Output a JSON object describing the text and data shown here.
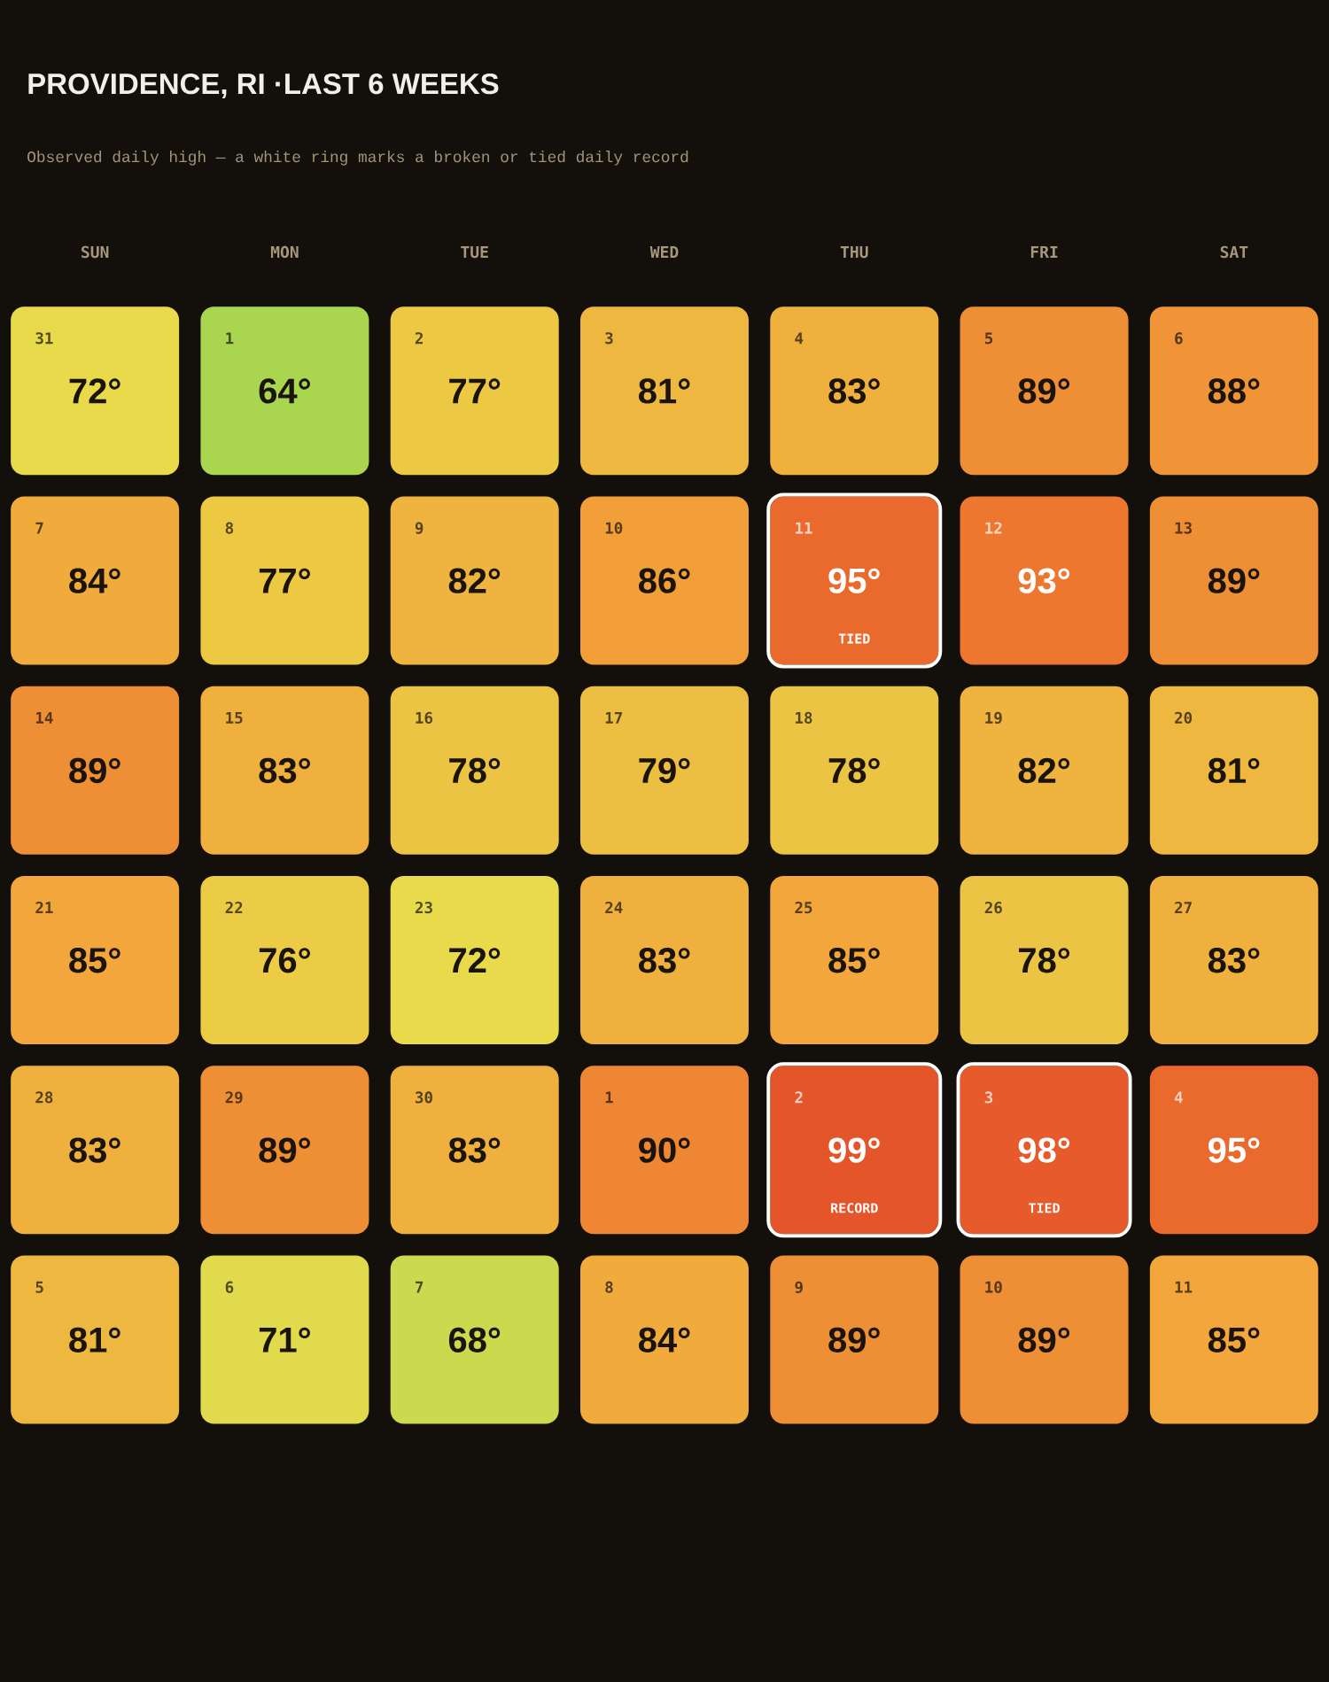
{
  "chart_data": {
    "type": "heatmap",
    "title": "PROVIDENCE, RI ·LAST 6 WEEKS",
    "subtitle": "Observed daily high — a white ring marks a broken or tied daily record",
    "categories": [
      "SUN",
      "MON",
      "TUE",
      "WED",
      "THU",
      "FRI",
      "SAT"
    ],
    "y_categories": [
      null,
      null,
      null,
      null,
      null,
      null
    ],
    "cells": [
      [
        72,
        64,
        77,
        81,
        83,
        89,
        88
      ],
      [
        84,
        77,
        82,
        86,
        95,
        93,
        89
      ],
      [
        89,
        83,
        78,
        79,
        78,
        82,
        81
      ],
      [
        85,
        76,
        72,
        83,
        85,
        78,
        83
      ],
      [
        83,
        89,
        83,
        90,
        99,
        98,
        95
      ],
      [
        81,
        71,
        68,
        84,
        89,
        89,
        85
      ]
    ],
    "cell_labels": [
      [
        "72°",
        "64°",
        "77°",
        "81°",
        "83°",
        "89°",
        "88°"
      ],
      [
        "84°",
        "77°",
        "82°",
        "86°",
        "95°",
        "93°",
        "89°"
      ],
      [
        "89°",
        "83°",
        "78°",
        "79°",
        "78°",
        "82°",
        "81°"
      ],
      [
        "85°",
        "76°",
        "72°",
        "83°",
        "85°",
        "78°",
        "83°"
      ],
      [
        "83°",
        "89°",
        "83°",
        "90°",
        "99°",
        "98°",
        "95°"
      ],
      [
        "81°",
        "71°",
        "68°",
        "84°",
        "89°",
        "89°",
        "85°"
      ]
    ],
    "annotations": [
      "31",
      "1",
      "2",
      "3",
      "4",
      "5",
      "6",
      "7",
      "8",
      "9",
      "10",
      "11",
      "12",
      "13",
      "14",
      "15",
      "16",
      "17",
      "18",
      "19",
      "20",
      "21",
      "22",
      "23",
      "24",
      "25",
      "26",
      "27",
      "28",
      "29",
      "30",
      "1",
      "2",
      "3",
      "4",
      "5",
      "6",
      "7",
      "8",
      "9",
      "10",
      "11",
      null,
      null,
      null,
      null,
      null,
      null,
      null,
      null,
      null,
      null,
      null,
      "TIED",
      null,
      null,
      null,
      null,
      null,
      null,
      null,
      null,
      null,
      null,
      null,
      null,
      null,
      null,
      null,
      null,
      null,
      null,
      null,
      null,
      "RECORD",
      "TIED",
      null,
      null,
      null,
      null,
      null,
      null,
      null,
      null
    ]
  }
}
